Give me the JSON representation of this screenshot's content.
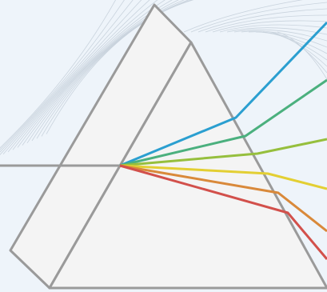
{
  "colors": {
    "background": "#eef4fa",
    "wave_lines": "#c9d3dd",
    "prism_fill": "#f4f4f4",
    "prism_stroke": "#9a9a9a",
    "incident_beam": "#9a9a9a"
  },
  "rays": [
    {
      "name": "blue-ray",
      "color": "#2b9fd0"
    },
    {
      "name": "green-ray",
      "color": "#4bb07e"
    },
    {
      "name": "yellow-green-ray",
      "color": "#96bf3d"
    },
    {
      "name": "yellow-ray",
      "color": "#e3cf33"
    },
    {
      "name": "orange-ray",
      "color": "#d9893a"
    },
    {
      "name": "red-ray",
      "color": "#d2504b"
    }
  ]
}
